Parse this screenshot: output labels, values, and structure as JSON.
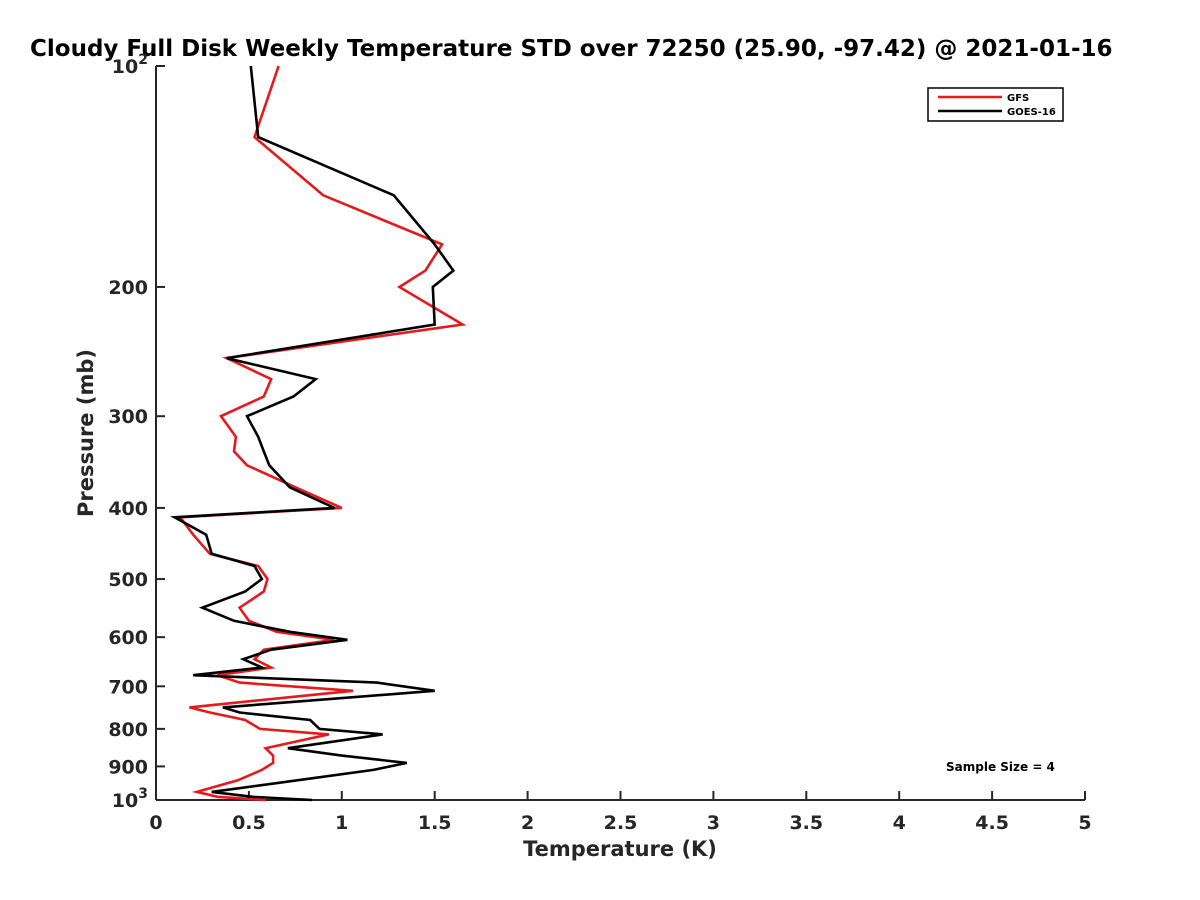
{
  "chart_data": {
    "type": "line",
    "title": "Cloudy Full Disk Weekly Temperature STD over 72250 (25.90, -97.42) @ 2021-01-16",
    "xlabel": "Temperature (K)",
    "ylabel": "Pressure (mb)",
    "xlim": [
      0,
      5
    ],
    "ylim": [
      100,
      1000
    ],
    "yscale": "log",
    "y_reversed": true,
    "x_ticks": [
      "0",
      "0.5",
      "1",
      "1.5",
      "2",
      "2.5",
      "3",
      "3.5",
      "4",
      "4.5",
      "5"
    ],
    "y_ticks": [
      {
        "value": 100,
        "label": "10",
        "sup": "2"
      },
      {
        "value": 200,
        "label": "200",
        "sup": ""
      },
      {
        "value": 300,
        "label": "300",
        "sup": ""
      },
      {
        "value": 400,
        "label": "400",
        "sup": ""
      },
      {
        "value": 500,
        "label": "500",
        "sup": ""
      },
      {
        "value": 600,
        "label": "600",
        "sup": ""
      },
      {
        "value": 700,
        "label": "700",
        "sup": ""
      },
      {
        "value": 800,
        "label": "800",
        "sup": ""
      },
      {
        "value": 900,
        "label": "900",
        "sup": ""
      },
      {
        "value": 1000,
        "label": "10",
        "sup": "3"
      }
    ],
    "grid": false,
    "legend_position": "top-right",
    "series": [
      {
        "name": "GFS",
        "color": "#e41a1c",
        "points": [
          [
            0.66,
            100
          ],
          [
            0.53,
            125
          ],
          [
            0.9,
            150
          ],
          [
            1.54,
            175
          ],
          [
            1.45,
            190
          ],
          [
            1.31,
            200
          ],
          [
            1.65,
            225
          ],
          [
            0.38,
            250
          ],
          [
            0.62,
            267
          ],
          [
            0.58,
            282
          ],
          [
            0.35,
            300
          ],
          [
            0.43,
            320
          ],
          [
            0.42,
            335
          ],
          [
            0.49,
            350
          ],
          [
            0.75,
            375
          ],
          [
            1.0,
            400
          ],
          [
            0.13,
            412
          ],
          [
            0.2,
            435
          ],
          [
            0.29,
            462
          ],
          [
            0.55,
            480
          ],
          [
            0.6,
            500
          ],
          [
            0.58,
            520
          ],
          [
            0.45,
            547
          ],
          [
            0.5,
            570
          ],
          [
            0.65,
            590
          ],
          [
            0.96,
            605
          ],
          [
            0.58,
            624
          ],
          [
            0.53,
            643
          ],
          [
            0.62,
            660
          ],
          [
            0.33,
            676
          ],
          [
            0.45,
            692
          ],
          [
            1.06,
            710
          ],
          [
            0.18,
            748
          ],
          [
            0.29,
            760
          ],
          [
            0.48,
            778
          ],
          [
            0.56,
            800
          ],
          [
            0.93,
            814
          ],
          [
            0.59,
            850
          ],
          [
            0.63,
            870
          ],
          [
            0.63,
            890
          ],
          [
            0.57,
            910
          ],
          [
            0.44,
            940
          ],
          [
            0.22,
            975
          ],
          [
            0.33,
            990
          ],
          [
            0.59,
            1000
          ]
        ]
      },
      {
        "name": "GOES-16",
        "color": "#000000",
        "points": [
          [
            0.51,
            100
          ],
          [
            0.55,
            125
          ],
          [
            1.28,
            150
          ],
          [
            1.5,
            175
          ],
          [
            1.6,
            190
          ],
          [
            1.49,
            200
          ],
          [
            1.5,
            225
          ],
          [
            0.38,
            250
          ],
          [
            0.86,
            267
          ],
          [
            0.74,
            282
          ],
          [
            0.49,
            300
          ],
          [
            0.55,
            320
          ],
          [
            0.58,
            335
          ],
          [
            0.61,
            350
          ],
          [
            0.72,
            375
          ],
          [
            0.96,
            400
          ],
          [
            0.1,
            412
          ],
          [
            0.27,
            435
          ],
          [
            0.3,
            462
          ],
          [
            0.53,
            480
          ],
          [
            0.57,
            500
          ],
          [
            0.48,
            520
          ],
          [
            0.25,
            547
          ],
          [
            0.42,
            570
          ],
          [
            0.72,
            590
          ],
          [
            1.03,
            605
          ],
          [
            0.62,
            624
          ],
          [
            0.47,
            643
          ],
          [
            0.57,
            660
          ],
          [
            0.2,
            676
          ],
          [
            1.19,
            692
          ],
          [
            1.5,
            710
          ],
          [
            0.36,
            748
          ],
          [
            0.45,
            760
          ],
          [
            0.83,
            778
          ],
          [
            0.88,
            800
          ],
          [
            1.22,
            814
          ],
          [
            0.71,
            850
          ],
          [
            1.0,
            870
          ],
          [
            1.35,
            890
          ],
          [
            1.17,
            910
          ],
          [
            0.76,
            940
          ],
          [
            0.3,
            975
          ],
          [
            0.52,
            990
          ],
          [
            0.84,
            1000
          ]
        ]
      }
    ],
    "annotations": [
      "Sample Size = 4"
    ]
  }
}
